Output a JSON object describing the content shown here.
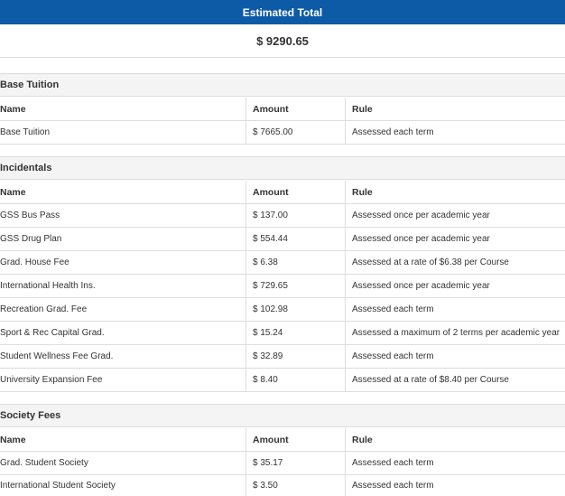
{
  "header": {
    "title": "Estimated Total"
  },
  "total": {
    "value": "$ 9290.65"
  },
  "columns": {
    "name": "Name",
    "amount": "Amount",
    "rule": "Rule"
  },
  "sections": [
    {
      "title": "Base Tuition",
      "rows": [
        {
          "name": "Base Tuition",
          "amount": "$ 7665.00",
          "rule": "Assessed each term"
        }
      ]
    },
    {
      "title": "Incidentals",
      "rows": [
        {
          "name": "GSS Bus Pass",
          "amount": "$ 137.00",
          "rule": "Assessed once per academic year"
        },
        {
          "name": "GSS Drug Plan",
          "amount": "$ 554.44",
          "rule": "Assessed once per academic year"
        },
        {
          "name": "Grad. House Fee",
          "amount": "$ 6.38",
          "rule": "Assessed at a rate of $6.38 per Course"
        },
        {
          "name": "International Health Ins.",
          "amount": "$ 729.65",
          "rule": "Assessed once per academic year"
        },
        {
          "name": "Recreation Grad. Fee",
          "amount": "$ 102.98",
          "rule": "Assessed each term"
        },
        {
          "name": "Sport & Rec Capital Grad.",
          "amount": "$ 15.24",
          "rule": "Assessed a maximum of 2 terms per academic year"
        },
        {
          "name": "Student Wellness Fee Grad.",
          "amount": "$ 32.89",
          "rule": "Assessed each term"
        },
        {
          "name": "University Expansion Fee",
          "amount": "$ 8.40",
          "rule": "Assessed at a rate of $8.40 per Course"
        }
      ]
    },
    {
      "title": "Society Fees",
      "rows": [
        {
          "name": "Grad. Student Society",
          "amount": "$ 35.17",
          "rule": "Assessed each term"
        },
        {
          "name": "International Student Society",
          "amount": "$ 3.50",
          "rule": "Assessed each term"
        }
      ]
    }
  ]
}
